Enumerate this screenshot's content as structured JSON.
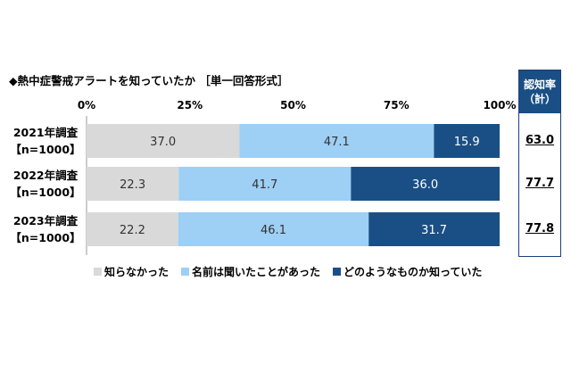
{
  "title": "◆熱中症警戒アラートを知っていたか ［単一回答形式］",
  "recognition": {
    "header_line1": "認知率",
    "header_line2": "（計）",
    "values": [
      "63.0",
      "77.7",
      "77.8"
    ]
  },
  "chart_data": {
    "type": "bar",
    "orientation": "horizontal",
    "stacked": "percent",
    "categories": [
      {
        "line1": "2021年調査",
        "line2": "【n=1000】"
      },
      {
        "line1": "2022年調査",
        "line2": "【n=1000】"
      },
      {
        "line1": "2023年調査",
        "line2": "【n=1000】"
      }
    ],
    "x_ticks": [
      "0%",
      "25%",
      "50%",
      "75%",
      "100%"
    ],
    "xlim": [
      0,
      100
    ],
    "series": [
      {
        "name": "知らなかった",
        "color": "#d9d9d9",
        "text_color": "#333333",
        "values": [
          37.0,
          22.3,
          22.2
        ],
        "labels": [
          "37.0",
          "22.3",
          "22.2"
        ]
      },
      {
        "name": "名前は聞いたことがあった",
        "color": "#9ecff5",
        "text_color": "#333333",
        "values": [
          47.1,
          41.7,
          46.1
        ],
        "labels": [
          "47.1",
          "41.7",
          "46.1"
        ]
      },
      {
        "name": "どのようなものか知っていた",
        "color": "#1a4f85",
        "text_color": "#ffffff",
        "values": [
          15.9,
          36.0,
          31.7
        ],
        "labels": [
          "15.9",
          "36.0",
          "31.7"
        ]
      }
    ],
    "legend_position": "bottom",
    "grid": false
  }
}
